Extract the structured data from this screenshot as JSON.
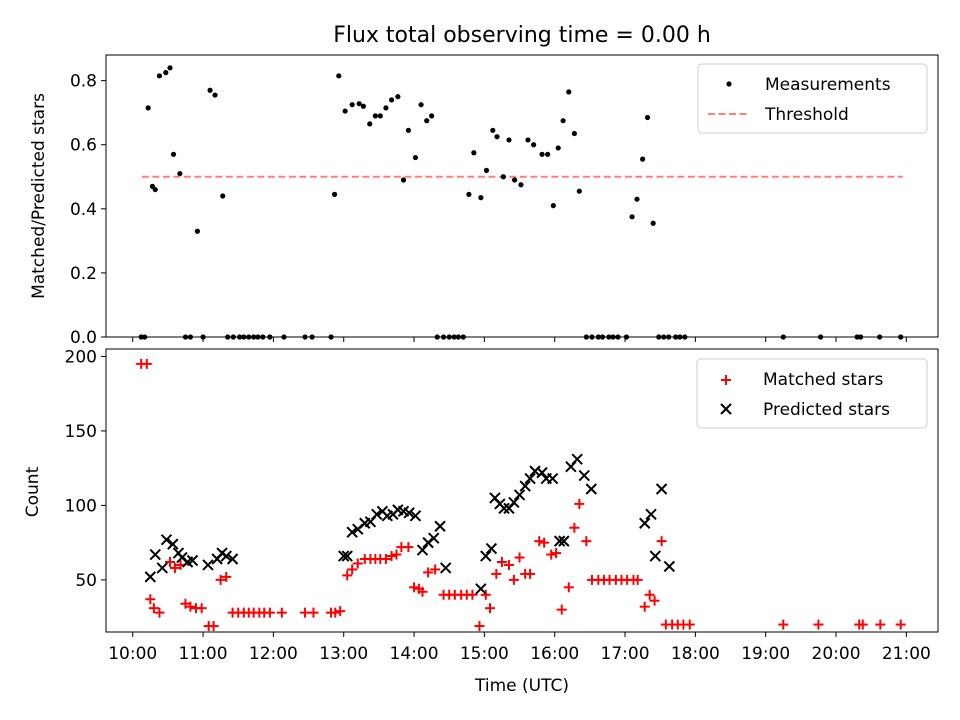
{
  "title": "Flux total observing time = 0.00 h",
  "xlabel": "Time (UTC)",
  "xticks": [
    "10:00",
    "11:00",
    "12:00",
    "13:00",
    "14:00",
    "15:00",
    "16:00",
    "17:00",
    "18:00",
    "19:00",
    "20:00",
    "21:00"
  ],
  "colors": {
    "matched": "#ff0000",
    "predicted": "#000000",
    "threshold": "#ff7f7f",
    "measurement": "#000000"
  },
  "chart_data": [
    {
      "type": "scatter",
      "ylabel": "Matched/Predicted stars",
      "ylim": [
        0,
        0.88
      ],
      "yticks": [
        "0.0",
        "0.2",
        "0.4",
        "0.6",
        "0.8"
      ],
      "xlim_hours": [
        9.62,
        21.45
      ],
      "legend": {
        "position": "top-right",
        "entries": [
          "Measurements",
          "Threshold"
        ]
      },
      "threshold": {
        "name": "Threshold",
        "value": 0.5,
        "x_range": [
          10.13,
          20.95
        ]
      },
      "series": [
        {
          "name": "Measurements",
          "x": [
            10.12,
            10.17,
            10.22,
            10.28,
            10.32,
            10.38,
            10.47,
            10.53,
            10.58,
            10.67,
            10.75,
            10.82,
            10.92,
            11.0,
            11.1,
            11.17,
            11.28,
            11.35,
            11.43,
            11.52,
            11.58,
            11.65,
            11.72,
            11.78,
            11.85,
            11.95,
            12.15,
            12.45,
            12.55,
            12.82,
            12.87,
            12.93,
            13.02,
            13.12,
            13.22,
            13.28,
            13.37,
            13.45,
            13.52,
            13.6,
            13.68,
            13.77,
            13.85,
            13.92,
            14.02,
            14.1,
            14.18,
            14.25,
            14.33,
            14.42,
            14.5,
            14.57,
            14.63,
            14.7,
            14.78,
            14.85,
            14.95,
            15.03,
            15.12,
            15.18,
            15.27,
            15.35,
            15.43,
            15.52,
            15.62,
            15.7,
            15.82,
            15.9,
            15.98,
            16.05,
            16.12,
            16.2,
            16.28,
            16.35,
            16.45,
            16.53,
            16.62,
            16.68,
            16.77,
            16.83,
            16.9,
            17.02,
            17.1,
            17.17,
            17.25,
            17.32,
            17.4,
            17.48,
            17.55,
            17.62,
            17.72,
            17.78,
            17.85,
            19.25,
            19.78,
            20.3,
            20.35,
            20.62,
            20.92
          ],
          "y": [
            0.0,
            0.0,
            0.715,
            0.47,
            0.46,
            0.815,
            0.825,
            0.84,
            0.57,
            0.51,
            0.0,
            0.0,
            0.33,
            0.0,
            0.77,
            0.755,
            0.44,
            0.0,
            0.0,
            0.0,
            0.0,
            0.0,
            0.0,
            0.0,
            0.0,
            0.0,
            0.0,
            0.0,
            0.0,
            0.0,
            0.445,
            0.815,
            0.705,
            0.725,
            0.728,
            0.72,
            0.665,
            0.69,
            0.69,
            0.715,
            0.74,
            0.75,
            0.49,
            0.645,
            0.56,
            0.725,
            0.675,
            0.69,
            0.0,
            0.0,
            0.0,
            0.0,
            0.0,
            0.0,
            0.445,
            0.575,
            0.435,
            0.52,
            0.645,
            0.625,
            0.5,
            0.615,
            0.49,
            0.475,
            0.615,
            0.6,
            0.57,
            0.57,
            0.41,
            0.59,
            0.675,
            0.765,
            0.635,
            0.455,
            0.0,
            0.0,
            0.0,
            0.0,
            0.0,
            0.0,
            0.0,
            0.0,
            0.375,
            0.43,
            0.555,
            0.685,
            0.355,
            0.0,
            0.0,
            0.0,
            0.0,
            0.0,
            0.0,
            0.0,
            0.0,
            0.0,
            0.0,
            0.0,
            0.0
          ]
        }
      ]
    },
    {
      "type": "scatter",
      "ylabel": "Count",
      "ylim": [
        15,
        205
      ],
      "yticks": [
        "50",
        "100",
        "150",
        "200"
      ],
      "xlim_hours": [
        9.62,
        21.45
      ],
      "legend": {
        "position": "top-right",
        "entries": [
          "Matched stars",
          "Predicted stars"
        ]
      },
      "series": [
        {
          "name": "Matched stars",
          "marker": "plus",
          "x": [
            10.12,
            10.2,
            10.25,
            10.3,
            10.38,
            10.53,
            10.6,
            10.68,
            10.75,
            10.82,
            10.9,
            10.98,
            11.08,
            11.15,
            11.25,
            11.33,
            11.42,
            11.5,
            11.58,
            11.65,
            11.72,
            11.8,
            11.87,
            11.95,
            12.12,
            12.45,
            12.57,
            12.82,
            12.88,
            12.95,
            13.05,
            13.12,
            13.2,
            13.3,
            13.38,
            13.45,
            13.52,
            13.6,
            13.68,
            13.75,
            13.82,
            13.92,
            14.0,
            14.07,
            14.12,
            14.2,
            14.3,
            14.42,
            14.5,
            14.58,
            14.67,
            14.75,
            14.83,
            14.93,
            15.02,
            15.08,
            15.17,
            15.25,
            15.35,
            15.42,
            15.5,
            15.58,
            15.65,
            15.78,
            15.85,
            15.95,
            16.02,
            16.1,
            16.2,
            16.28,
            16.35,
            16.45,
            16.53,
            16.62,
            16.7,
            16.78,
            16.87,
            16.95,
            17.03,
            17.12,
            17.18,
            17.28,
            17.35,
            17.42,
            17.52,
            17.58,
            17.67,
            17.75,
            17.83,
            17.92,
            19.25,
            19.75,
            20.33,
            20.38,
            20.63,
            20.92
          ],
          "y": [
            195,
            195,
            37,
            31,
            28,
            62,
            58,
            60,
            34,
            32,
            31,
            31,
            19,
            19,
            50,
            52,
            28,
            28,
            28,
            28,
            28,
            28,
            28,
            28,
            28,
            28,
            28,
            28,
            28,
            29,
            53,
            57,
            61,
            64,
            64,
            64,
            64,
            64,
            66,
            67,
            72,
            72,
            45,
            44,
            42,
            55,
            57,
            40,
            40,
            40,
            40,
            40,
            40,
            19,
            40,
            31,
            54,
            62,
            60,
            50,
            65,
            54,
            54,
            76,
            75,
            67,
            68,
            30,
            45,
            85,
            101,
            76,
            50,
            50,
            50,
            50,
            50,
            50,
            50,
            50,
            50,
            32,
            40,
            36,
            76,
            20,
            20,
            20,
            20,
            20,
            20,
            20,
            20,
            20,
            20,
            20
          ]
        },
        {
          "name": "Predicted stars",
          "marker": "x",
          "x": [
            10.25,
            10.32,
            10.42,
            10.48,
            10.57,
            10.65,
            10.7,
            10.78,
            10.85,
            11.07,
            11.2,
            11.27,
            11.33,
            11.42,
            13.0,
            13.05,
            13.12,
            13.2,
            13.3,
            13.38,
            13.47,
            13.55,
            13.62,
            13.7,
            13.77,
            13.85,
            13.93,
            14.02,
            14.12,
            14.2,
            14.28,
            14.37,
            14.45,
            14.95,
            15.02,
            15.1,
            15.15,
            15.22,
            15.28,
            15.35,
            15.42,
            15.5,
            15.58,
            15.65,
            15.72,
            15.82,
            15.88,
            15.97,
            16.07,
            16.13,
            16.23,
            16.32,
            16.42,
            16.52,
            17.28,
            17.37,
            17.43,
            17.52,
            17.63
          ],
          "y": [
            52,
            67,
            58,
            77,
            74,
            68,
            65,
            62,
            63,
            60,
            64,
            68,
            66,
            64,
            66,
            66,
            82,
            84,
            88,
            89,
            94,
            96,
            93,
            94,
            97,
            96,
            95,
            93,
            70,
            75,
            78,
            86,
            58,
            44,
            66,
            71,
            105,
            101,
            98,
            98,
            102,
            107,
            113,
            118,
            123,
            122,
            118,
            118,
            76,
            76,
            126,
            131,
            120,
            111,
            88,
            94,
            66,
            111,
            59
          ]
        }
      ]
    }
  ]
}
